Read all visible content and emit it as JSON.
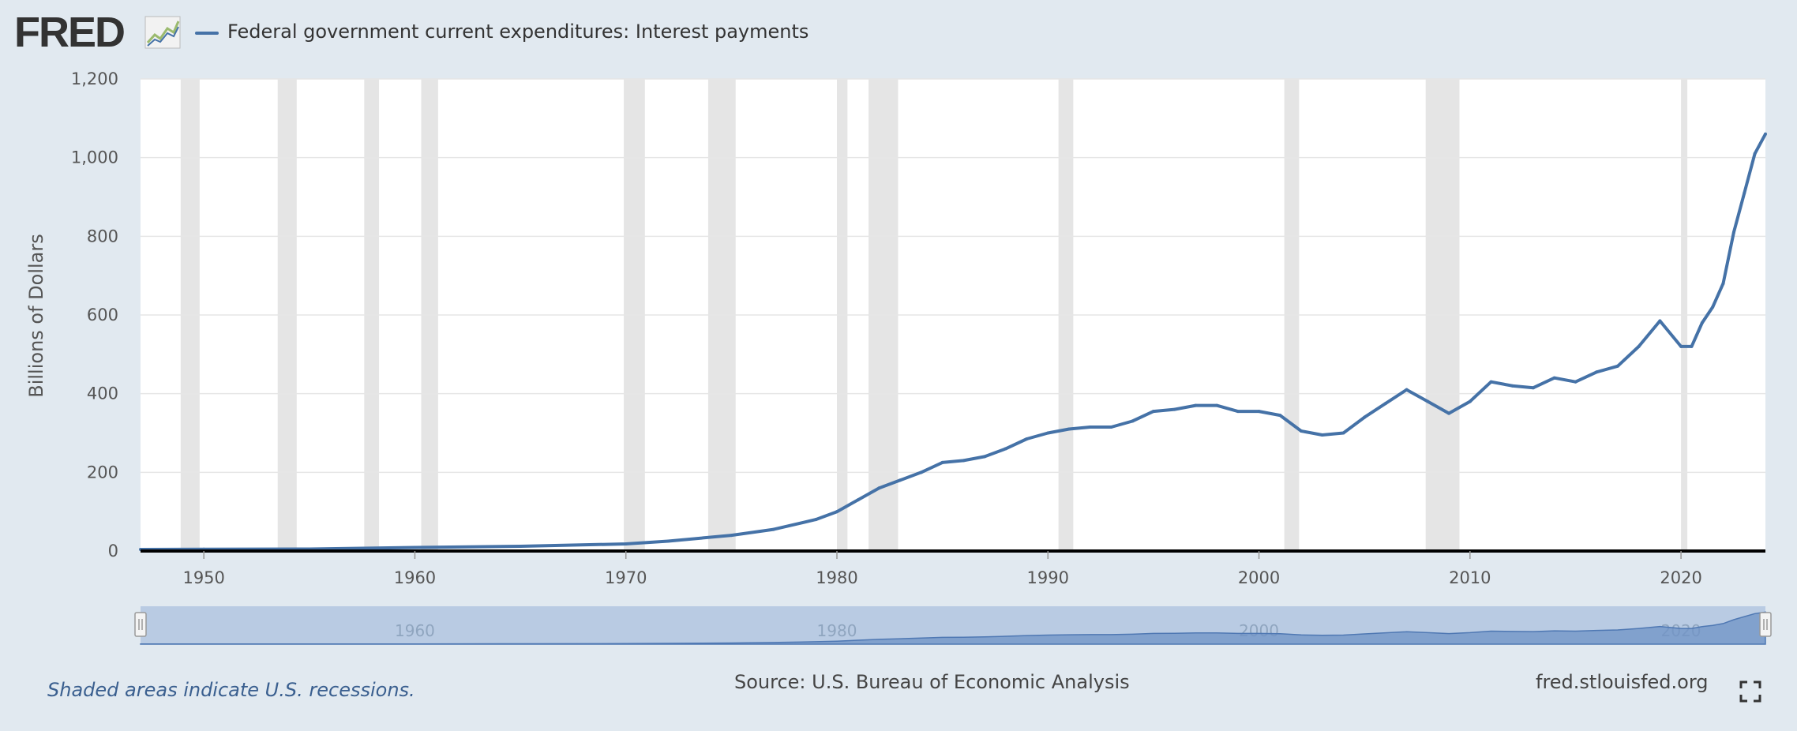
{
  "header": {
    "logo_text": "FRED",
    "series_title": "Federal government current expenditures: Interest payments"
  },
  "footer": {
    "recession_note": "Shaded areas indicate U.S. recessions.",
    "source": "Source: U.S. Bureau of Economic Analysis",
    "site": "fred.stlouisfed.org"
  },
  "colors": {
    "background": "#e1e9f0",
    "plot_background": "#ffffff",
    "series_line": "#4572a7",
    "recession_shade": "#e5e5e5",
    "navigator_fill": "#b9cbe3",
    "navigator_series": "#6f93c6"
  },
  "icons": [
    "fred-logo-graph-icon",
    "fullscreen-icon"
  ],
  "chart_data": {
    "type": "line",
    "title": "",
    "xlabel": "",
    "ylabel": "Billions of Dollars",
    "xlim": [
      1947,
      2024
    ],
    "ylim": [
      0,
      1200
    ],
    "x_ticks": [
      "1950",
      "1960",
      "1970",
      "1980",
      "1990",
      "2000",
      "2010",
      "2020"
    ],
    "y_ticks": [
      "0",
      "200",
      "400",
      "600",
      "800",
      "1,000",
      "1,200"
    ],
    "navigator_labels": [
      "1960",
      "1980",
      "2000",
      "2020"
    ],
    "grid": true,
    "recessions": [
      [
        1948.9,
        1949.8
      ],
      [
        1953.5,
        1954.4
      ],
      [
        1957.6,
        1958.3
      ],
      [
        1960.3,
        1961.1
      ],
      [
        1969.9,
        1970.9
      ],
      [
        1973.9,
        1975.2
      ],
      [
        1980.0,
        1980.5
      ],
      [
        1981.5,
        1982.9
      ],
      [
        1990.5,
        1991.2
      ],
      [
        2001.2,
        2001.9
      ],
      [
        2007.9,
        2009.5
      ],
      [
        2020.0,
        2020.3
      ]
    ],
    "series": [
      {
        "name": "Federal government current expenditures: Interest payments",
        "x": [
          1947,
          1950,
          1955,
          1960,
          1965,
          1970,
          1972,
          1975,
          1977,
          1979,
          1980,
          1981,
          1982,
          1983,
          1984,
          1985,
          1986,
          1987,
          1988,
          1989,
          1990,
          1991,
          1992,
          1993,
          1994,
          1995,
          1996,
          1997,
          1998,
          1999,
          2000,
          2001,
          2002,
          2003,
          2004,
          2005,
          2006,
          2007,
          2008,
          2009,
          2010,
          2011,
          2012,
          2013,
          2014,
          2015,
          2016,
          2017,
          2018,
          2019,
          2020,
          2020.5,
          2021,
          2021.5,
          2022,
          2022.5,
          2023,
          2023.5,
          2024
        ],
        "y": [
          4,
          4.5,
          5,
          9,
          12,
          18,
          25,
          40,
          55,
          80,
          100,
          130,
          160,
          180,
          200,
          225,
          230,
          240,
          260,
          285,
          300,
          310,
          315,
          315,
          330,
          355,
          360,
          370,
          370,
          355,
          355,
          345,
          305,
          295,
          300,
          340,
          375,
          410,
          380,
          350,
          380,
          430,
          420,
          415,
          440,
          430,
          455,
          470,
          520,
          585,
          520,
          520,
          580,
          620,
          680,
          810,
          910,
          1010,
          1060
        ]
      }
    ]
  }
}
